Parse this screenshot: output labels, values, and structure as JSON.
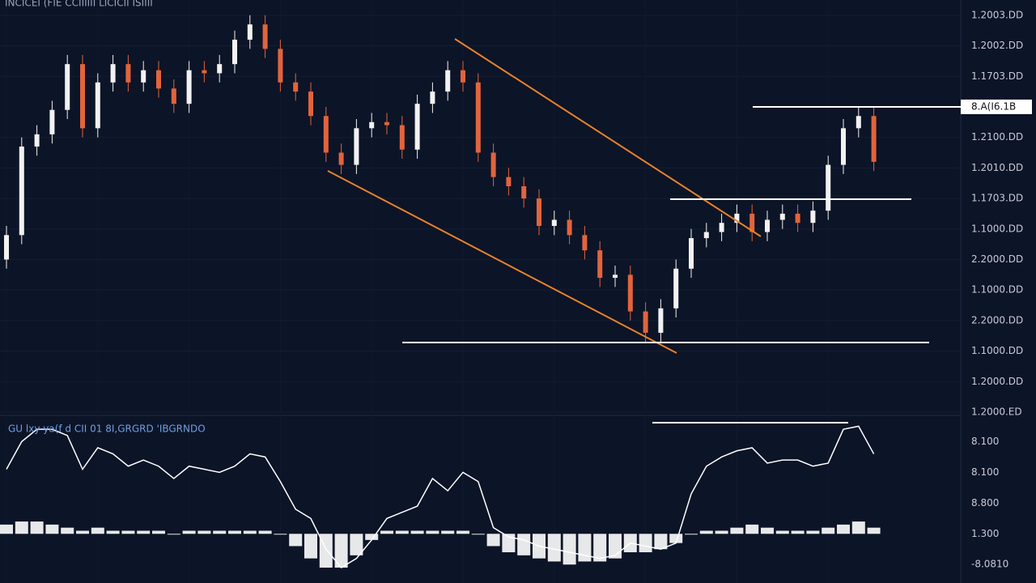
{
  "chart_data": [
    {
      "type": "candlestick",
      "title": "INCICEI (FIE CCIIIIII LICICII ISIIII",
      "categories": [
        null,
        null,
        null,
        null,
        null,
        null,
        null,
        null,
        null,
        null,
        null,
        null,
        null,
        null,
        null,
        null,
        null,
        null,
        null,
        null,
        null,
        null,
        null,
        null,
        null,
        null,
        null,
        null,
        null,
        null,
        null,
        null,
        null,
        null,
        null,
        null,
        null,
        null,
        null,
        null,
        null,
        null,
        null,
        null,
        null,
        null,
        null,
        null,
        null,
        null,
        null,
        null,
        null,
        null,
        null,
        null,
        null,
        null
      ],
      "open": [
        5.0,
        5.8,
        8.7,
        9.1,
        9.9,
        11.4,
        9.3,
        10.8,
        11.4,
        10.8,
        11.2,
        10.6,
        10.1,
        11.2,
        11.1,
        11.4,
        12.2,
        12.7,
        11.9,
        10.8,
        10.5,
        9.7,
        8.5,
        8.1,
        9.3,
        9.5,
        9.4,
        8.6,
        10.1,
        10.5,
        11.2,
        10.8,
        8.5,
        7.7,
        7.4,
        7.0,
        6.1,
        6.3,
        5.8,
        5.3,
        4.4,
        4.5,
        3.3,
        2.6,
        3.4,
        4.7,
        5.7,
        5.9,
        6.2,
        6.5,
        5.9,
        6.3,
        6.5,
        6.2,
        6.6,
        8.1,
        9.3,
        9.7
      ],
      "high": [
        6.1,
        9.0,
        9.4,
        10.2,
        11.7,
        11.7,
        11.1,
        11.7,
        11.7,
        11.5,
        11.5,
        10.9,
        11.5,
        11.5,
        11.7,
        12.5,
        13.0,
        13.0,
        12.2,
        11.1,
        10.8,
        10.0,
        8.8,
        9.6,
        9.8,
        9.8,
        9.7,
        10.4,
        10.8,
        11.5,
        11.5,
        11.1,
        8.8,
        8.0,
        7.7,
        7.3,
        6.6,
        6.6,
        6.1,
        5.6,
        4.8,
        4.8,
        3.6,
        3.7,
        5.0,
        6.0,
        6.2,
        6.5,
        6.8,
        6.8,
        6.6,
        6.8,
        6.8,
        6.9,
        8.4,
        9.6,
        10.0,
        10.0
      ],
      "low": [
        4.7,
        5.5,
        8.4,
        8.8,
        9.6,
        9.0,
        9.0,
        10.5,
        10.5,
        10.5,
        10.3,
        9.8,
        9.8,
        10.8,
        10.8,
        11.1,
        11.9,
        11.6,
        10.5,
        10.2,
        9.4,
        8.2,
        7.8,
        7.8,
        9.0,
        9.1,
        8.3,
        8.3,
        9.8,
        10.2,
        10.5,
        8.2,
        7.4,
        7.1,
        6.7,
        5.8,
        5.8,
        5.5,
        5.0,
        4.1,
        4.1,
        3.0,
        2.3,
        2.3,
        3.1,
        4.4,
        5.4,
        5.6,
        5.9,
        5.6,
        5.6,
        6.0,
        5.9,
        5.9,
        6.3,
        7.8,
        9.0,
        7.9
      ],
      "close": [
        5.8,
        8.7,
        9.1,
        9.9,
        11.4,
        9.3,
        10.8,
        11.4,
        10.8,
        11.2,
        10.6,
        10.1,
        11.2,
        11.1,
        11.4,
        12.2,
        12.7,
        11.9,
        10.8,
        10.5,
        9.7,
        8.5,
        8.1,
        9.3,
        9.5,
        9.4,
        8.6,
        10.1,
        10.5,
        11.2,
        10.8,
        8.5,
        7.7,
        7.4,
        7.0,
        6.1,
        6.3,
        5.8,
        5.3,
        4.4,
        4.5,
        3.3,
        2.6,
        3.4,
        4.7,
        5.7,
        5.9,
        6.2,
        6.5,
        5.9,
        6.3,
        6.5,
        6.2,
        6.6,
        8.1,
        9.3,
        9.7,
        8.2
      ],
      "up_color": "#f2f2f2",
      "down_color": "#e2643c",
      "ylim": [
        0,
        13.5
      ],
      "yticks": [
        {
          "value": 13,
          "label": "1.2003.DD"
        },
        {
          "value": 12,
          "label": "1.2002.DD"
        },
        {
          "value": 11,
          "label": "1.1703.DD"
        },
        {
          "value": 9,
          "label": "1.2100.DD"
        },
        {
          "value": 8,
          "label": "1.2010.DD"
        },
        {
          "value": 7,
          "label": "1.1703.DD"
        },
        {
          "value": 6,
          "label": "1.1000.DD"
        },
        {
          "value": 5,
          "label": "2.2000.DD"
        },
        {
          "value": 4,
          "label": "1.1000.DD"
        },
        {
          "value": 3,
          "label": "2.2000.DD"
        },
        {
          "value": 2,
          "label": "1.1000.DD"
        },
        {
          "value": 1,
          "label": "1.2000.DD"
        },
        {
          "value": 0,
          "label": "1.2000.ED"
        }
      ],
      "last_price": {
        "value": 10,
        "label": "8.A(I6.1B"
      },
      "grid": true
    },
    {
      "type": "oscillator",
      "title": "GU lxy ya(f d CII 01 8I,GRGRD 'IBGRNDO",
      "categories": [
        null,
        null,
        null,
        null,
        null,
        null,
        null,
        null,
        null,
        null,
        null,
        null,
        null,
        null,
        null,
        null,
        null,
        null,
        null,
        null,
        null,
        null,
        null,
        null,
        null,
        null,
        null,
        null,
        null,
        null,
        null,
        null,
        null,
        null,
        null,
        null,
        null,
        null,
        null,
        null,
        null,
        null,
        null,
        null,
        null,
        null,
        null,
        null,
        null,
        null,
        null,
        null,
        null,
        null,
        null,
        null,
        null,
        null
      ],
      "series": [
        {
          "color": "#ffffff",
          "values": [
            3.1,
            4.0,
            4.4,
            4.4,
            4.2,
            3.1,
            3.8,
            3.6,
            3.2,
            3.4,
            3.2,
            2.8,
            3.2,
            3.1,
            3.0,
            3.2,
            3.6,
            3.5,
            2.7,
            1.8,
            1.5,
            0.5,
            -0.1,
            0.2,
            0.8,
            1.5,
            1.7,
            1.9,
            2.8,
            2.4,
            3.0,
            2.7,
            1.2,
            0.9,
            0.8,
            0.6,
            0.5,
            0.4,
            0.3,
            0.2,
            0.3,
            0.7,
            0.6,
            0.5,
            0.7,
            2.3,
            3.2,
            3.5,
            3.7,
            3.8,
            3.3,
            3.4,
            3.4,
            3.2,
            3.3,
            4.4,
            4.5,
            3.6
          ]
        },
        {
          "color": "#ffffff",
          "axis": "y2",
          "kind": "histogram",
          "values": [
            0.3,
            0.4,
            0.4,
            0.3,
            0.2,
            0.1,
            0.2,
            0.1,
            0.1,
            0.1,
            0.1,
            0.0,
            0.1,
            0.1,
            0.1,
            0.1,
            0.1,
            0.1,
            0.0,
            -0.4,
            -0.8,
            -1.1,
            -1.1,
            -0.7,
            -0.2,
            0.1,
            0.1,
            0.1,
            0.1,
            0.1,
            0.1,
            0.0,
            -0.4,
            -0.6,
            -0.7,
            -0.8,
            -0.9,
            -1.0,
            -0.9,
            -0.9,
            -0.8,
            -0.6,
            -0.6,
            -0.5,
            -0.3,
            0.0,
            0.1,
            0.1,
            0.2,
            0.3,
            0.2,
            0.1,
            0.1,
            0.1,
            0.2,
            0.3,
            0.4,
            0.2
          ]
        }
      ],
      "ylim": [
        -0.6,
        4.8
      ],
      "yticks": [
        {
          "value": 4,
          "label": "8.100"
        },
        {
          "value": 3,
          "label": "8.100"
        },
        {
          "value": 2,
          "label": "8.800"
        },
        {
          "value": 1,
          "label": "1.300"
        },
        {
          "value": 0,
          "label": "-8.0810"
        }
      ],
      "y2lim": [
        -1.6,
        3.8
      ]
    }
  ]
}
